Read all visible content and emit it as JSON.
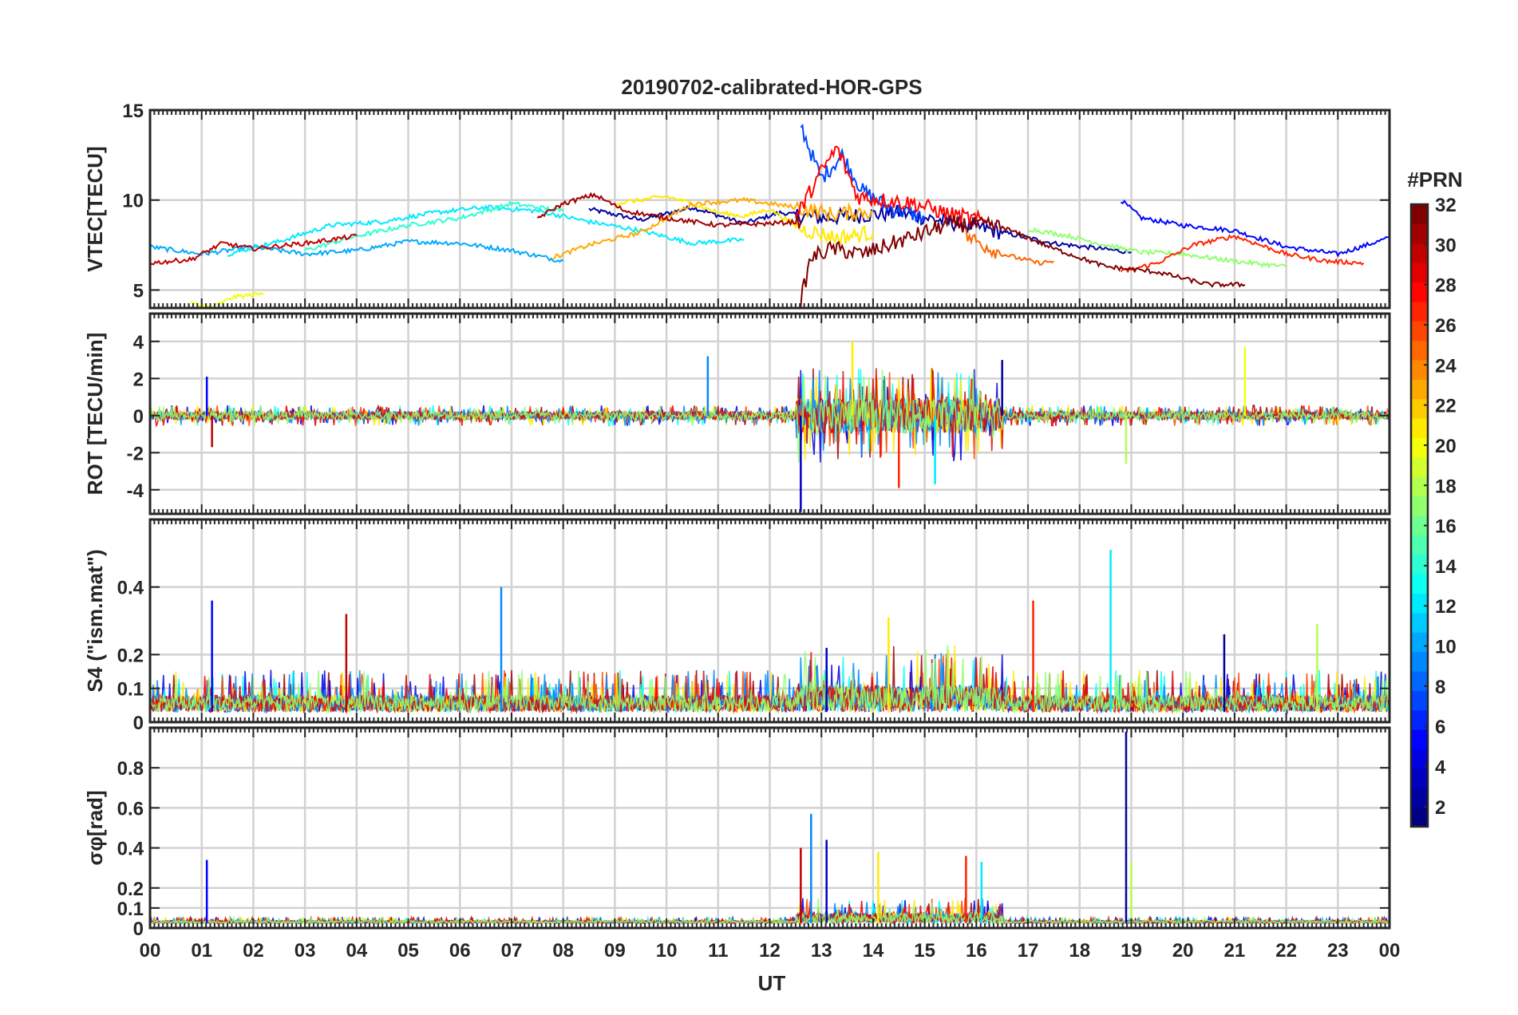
{
  "chart_data": {
    "type": "line",
    "title": "20190702-calibrated-HOR-GPS",
    "xlabel": "UT",
    "x_ticks": [
      "00",
      "01",
      "02",
      "03",
      "04",
      "05",
      "06",
      "07",
      "08",
      "09",
      "10",
      "11",
      "12",
      "13",
      "14",
      "15",
      "16",
      "17",
      "18",
      "19",
      "20",
      "21",
      "22",
      "23",
      "00"
    ],
    "xlim": [
      0,
      24
    ],
    "grid": true,
    "colorbar": {
      "label": "#PRN",
      "range": [
        1,
        32
      ],
      "ticks": [
        "2",
        "4",
        "6",
        "8",
        "10",
        "12",
        "14",
        "16",
        "18",
        "20",
        "22",
        "24",
        "26",
        "28",
        "30",
        "32"
      ],
      "colormap": "jet",
      "position": "right"
    },
    "panels": [
      {
        "ylabel": "VTEC[TECU]",
        "ylim": [
          4,
          15
        ],
        "y_ticks": [
          "5",
          "10",
          "15"
        ],
        "summary": "Per-PRN VTEC traces mostly 5-10 TECU; storm-time enhancement around 12.6-13.3 UT with peaks near 14 TECU",
        "series": [
          {
            "prn": 2,
            "values": [
              [
                8.5,
                9.5
              ],
              [
                9.5,
                8.9
              ],
              [
                10.5,
                9.6
              ],
              [
                11.5,
                8.7
              ],
              [
                12.2,
                9.3
              ],
              [
                13.0,
                9.0
              ],
              [
                14.5,
                9.3
              ],
              [
                16.0,
                8.5
              ],
              [
                17.5,
                7.6
              ],
              [
                19.0,
                7.1
              ]
            ]
          },
          {
            "prn": 5,
            "values": [
              [
                18.8,
                10.0
              ],
              [
                19.2,
                9.0
              ],
              [
                20.0,
                8.6
              ],
              [
                21.0,
                8.3
              ],
              [
                22.0,
                7.4
              ],
              [
                23.0,
                7.0
              ],
              [
                24.0,
                7.9
              ]
            ]
          },
          {
            "prn": 7,
            "values": [
              [
                12.6,
                14.2
              ],
              [
                12.8,
                12.6
              ],
              [
                13.0,
                11.2
              ],
              [
                13.4,
                12.5
              ],
              [
                13.8,
                10.5
              ],
              [
                14.3,
                9.6
              ],
              [
                15.0,
                9.0
              ]
            ]
          },
          {
            "prn": 10,
            "values": [
              [
                0.0,
                7.4
              ],
              [
                1.0,
                7.0
              ],
              [
                2.0,
                7.4
              ],
              [
                3.0,
                7.0
              ],
              [
                4.0,
                7.2
              ],
              [
                5.0,
                7.7
              ],
              [
                6.0,
                7.6
              ],
              [
                7.0,
                7.2
              ],
              [
                8.0,
                6.6
              ]
            ]
          },
          {
            "prn": 12,
            "values": [
              [
                1.5,
                7.0
              ],
              [
                2.5,
                7.7
              ],
              [
                3.5,
                8.6
              ],
              [
                4.5,
                8.8
              ],
              [
                5.5,
                9.3
              ],
              [
                6.5,
                9.6
              ],
              [
                7.5,
                9.4
              ],
              [
                8.5,
                8.8
              ],
              [
                9.5,
                8.3
              ],
              [
                10.5,
                7.6
              ],
              [
                11.5,
                7.8
              ]
            ]
          },
          {
            "prn": 14,
            "values": [
              [
                3.0,
                7.2
              ],
              [
                4.0,
                8.0
              ],
              [
                5.0,
                8.6
              ],
              [
                6.0,
                9.0
              ],
              [
                7.0,
                9.8
              ],
              [
                8.0,
                9.4
              ]
            ]
          },
          {
            "prn": 17,
            "values": [
              [
                17.0,
                8.4
              ],
              [
                17.8,
                8.0
              ],
              [
                18.5,
                7.5
              ],
              [
                19.2,
                7.1
              ],
              [
                20.0,
                7.0
              ],
              [
                21.0,
                6.6
              ],
              [
                22.0,
                6.3
              ]
            ]
          },
          {
            "prn": 20,
            "values": [
              [
                0.8,
                4.3
              ],
              [
                1.2,
                4.0
              ],
              [
                1.6,
                4.6
              ],
              [
                2.2,
                4.8
              ]
            ]
          },
          {
            "prn": 21,
            "values": [
              [
                9.0,
                9.8
              ],
              [
                9.5,
                10.0
              ],
              [
                10.0,
                10.2
              ],
              [
                10.5,
                9.8
              ],
              [
                11.0,
                9.3
              ],
              [
                11.5,
                9.1
              ],
              [
                12.0,
                9.5
              ],
              [
                12.6,
                8.4
              ],
              [
                13.3,
                7.9
              ],
              [
                14.0,
                8.2
              ]
            ]
          },
          {
            "prn": 23,
            "values": [
              [
                7.8,
                6.8
              ],
              [
                8.5,
                7.5
              ],
              [
                9.5,
                8.2
              ],
              [
                10.5,
                9.8
              ],
              [
                11.5,
                10.0
              ],
              [
                12.5,
                9.6
              ],
              [
                13.2,
                9.2
              ],
              [
                14.0,
                9.4
              ]
            ]
          },
          {
            "prn": 25,
            "values": [
              [
                15.8,
                8.0
              ],
              [
                16.5,
                7.0
              ],
              [
                17.2,
                6.5
              ],
              [
                17.5,
                6.6
              ]
            ]
          },
          {
            "prn": 27,
            "values": [
              [
                18.8,
                6.0
              ],
              [
                19.5,
                6.5
              ],
              [
                20.2,
                7.5
              ],
              [
                21.0,
                8.0
              ],
              [
                21.5,
                7.5
              ],
              [
                22.0,
                7.0
              ],
              [
                22.8,
                6.6
              ],
              [
                23.5,
                6.5
              ]
            ]
          },
          {
            "prn": 28,
            "values": [
              [
                12.5,
                9.0
              ],
              [
                13.0,
                11.6
              ],
              [
                13.3,
                12.9
              ],
              [
                13.7,
                10.2
              ],
              [
                14.2,
                10.0
              ],
              [
                14.8,
                9.8
              ],
              [
                15.5,
                9.2
              ],
              [
                16.2,
                8.8
              ]
            ]
          },
          {
            "prn": 30,
            "values": [
              [
                0.0,
                6.5
              ],
              [
                0.8,
                6.7
              ],
              [
                1.4,
                7.6
              ],
              [
                2.0,
                7.3
              ],
              [
                3.0,
                7.6
              ],
              [
                4.0,
                8.0
              ]
            ]
          },
          {
            "prn": 31,
            "values": [
              [
                7.5,
                9.0
              ],
              [
                8.0,
                9.8
              ],
              [
                8.6,
                10.3
              ],
              [
                9.2,
                9.4
              ],
              [
                10.0,
                9.0
              ],
              [
                11.0,
                8.6
              ],
              [
                12.0,
                8.7
              ],
              [
                12.6,
                8.8
              ]
            ]
          },
          {
            "prn": 32,
            "values": [
              [
                12.6,
                4.4
              ],
              [
                12.8,
                6.8
              ],
              [
                13.2,
                7.3
              ],
              [
                13.8,
                7.0
              ],
              [
                15.5,
                8.7
              ],
              [
                16.5,
                8.5
              ],
              [
                17.5,
                7.3
              ],
              [
                18.5,
                6.3
              ],
              [
                19.5,
                6.0
              ],
              [
                20.5,
                5.3
              ],
              [
                21.2,
                5.3
              ]
            ]
          }
        ]
      },
      {
        "ylabel": "ROT [TECU/min]",
        "ylim": [
          -5.3,
          5.5
        ],
        "y_ticks": [
          "-4",
          "-2",
          "0",
          "2",
          "4"
        ],
        "summary": "Rate of TEC mostly within +/-1 TECU/min; strong fluctuations 12.5-16.5 UT reaching about +4 and -5 TECU/min; spikes near 10.8 UT (+3.2), 21.2 UT (+3.7) and 18.9 UT (-2.6)",
        "notable_points": [
          [
            1.1,
            2.1
          ],
          [
            1.2,
            -1.7
          ],
          [
            10.8,
            3.2
          ],
          [
            12.6,
            -5.2
          ],
          [
            13.6,
            4.0
          ],
          [
            14.5,
            -3.9
          ],
          [
            15.2,
            -3.7
          ],
          [
            16.5,
            3.0
          ],
          [
            18.9,
            -2.6
          ],
          [
            21.2,
            3.7
          ]
        ]
      },
      {
        "ylabel": "S4 (\"ism.mat\")",
        "ylim": [
          0,
          0.6
        ],
        "y_ticks": [
          "0",
          "0.1",
          "0.2",
          "0.4"
        ],
        "summary": "Amplitude scintillation S4 mostly below 0.15 with peaks: 0.36 near 01.2 UT, 0.40 near 06.8 UT, 0.51 near 18.6 UT",
        "notable_points": [
          [
            1.2,
            0.36
          ],
          [
            3.8,
            0.32
          ],
          [
            6.8,
            0.4
          ],
          [
            13.1,
            0.22
          ],
          [
            14.3,
            0.31
          ],
          [
            17.1,
            0.36
          ],
          [
            18.6,
            0.51
          ],
          [
            20.8,
            0.26
          ],
          [
            22.6,
            0.29
          ]
        ]
      },
      {
        "ylabel": "σφ[rad]",
        "ylim": [
          0,
          1.0
        ],
        "y_ticks": [
          "0",
          "0.1",
          "0.2",
          "0.4",
          "0.6",
          "0.8"
        ],
        "summary": "Phase scintillation σφ near 0.03 baseline; bursts 12.6-15 UT up to 0.57; largest spike about 0.98 at 18.9 UT",
        "notable_points": [
          [
            1.1,
            0.34
          ],
          [
            12.6,
            0.4
          ],
          [
            12.8,
            0.57
          ],
          [
            13.1,
            0.44
          ],
          [
            14.1,
            0.38
          ],
          [
            15.8,
            0.36
          ],
          [
            16.1,
            0.33
          ],
          [
            18.9,
            0.98
          ],
          [
            19.0,
            0.33
          ]
        ]
      }
    ]
  }
}
